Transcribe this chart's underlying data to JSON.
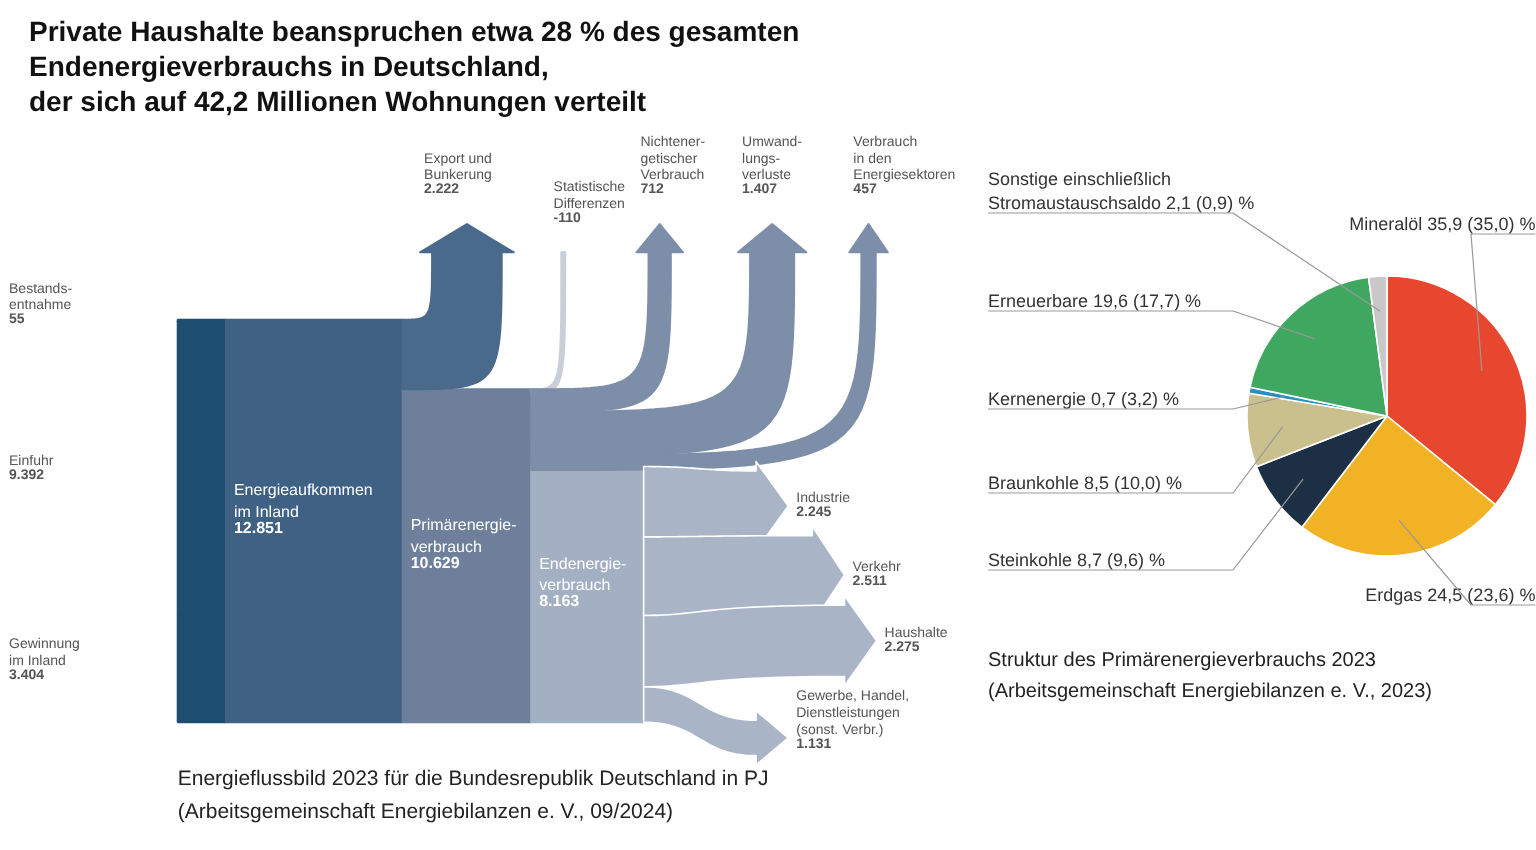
{
  "chart_data": [
    {
      "type": "other",
      "title": "Private Haushalte beanspruchen etwa 28 % des gesamten\nEndenergieverbrauchs in Deutschland,\nder sich auf 42,2 Millionen Wohnungen verteilt",
      "categories": [
        "Bestands-\nentnahme",
        "Einfuhr",
        "Gewinnung\nim Inland",
        "Energieaufkommen\nim Inland",
        "Export und\nBunkerung",
        "Primärenergie-\nverbrauch",
        "Statistische\nDifferenzen",
        "Nichtener-\ngetischer\nVerbrauch",
        "Umwand-\nlungs-\nverluste",
        "Verbrauch\nin den\nEnergiesektoren",
        "Endenergie-\nverbrauch",
        "Industrie",
        "Verkehr",
        "Haushalte",
        "Gewerbe, Handel,\nDienstleistungen\n(sonst. Verbr.)"
      ],
      "values": [
        55,
        9392,
        3404,
        12851,
        2222,
        10629,
        -110,
        712,
        1407,
        457,
        8163,
        2245,
        2511,
        2275,
        1131
      ],
      "value_labels": [
        "55",
        "9.392",
        "3.404",
        "12.851",
        "2.222",
        "10.629",
        "-110",
        "712",
        "1.407",
        "457",
        "8.163",
        "2.245",
        "2.511",
        "2.275",
        "1.131"
      ],
      "colors": [
        "#1d4e72",
        "#1d4e72",
        "#1d4e72",
        "#3f6184",
        "#4a6a8c",
        "#6d7f9a",
        "#c9ced8",
        "#7d8ea8",
        "#7d8ea8",
        "#7d8ea8",
        "#a3b0c3",
        "#a9b5c6",
        "#a9b5c6",
        "#a9b5c6",
        "#a9b5c6"
      ],
      "annotations": [
        "Energieflussbild 2023 für die Bundesrepublik Deutschland in PJ",
        "(Arbeitsgemeinschaft Energiebilanzen e. V., 09/2024)"
      ]
    },
    {
      "type": "pie",
      "categories": [
        "Mineralöl",
        "Erdgas",
        "Steinkohle",
        "Braunkohle",
        "Kernenergie",
        "Erneuerbare",
        "Sonstige einschließlich\nStromaustauschsaldo"
      ],
      "values": [
        35.9,
        24.5,
        8.7,
        8.5,
        0.7,
        19.6,
        2.1
      ],
      "value_labels": [
        "35,9 (35,0) %",
        "24,5 (23,6) %",
        "8,7 (9,6) %",
        "8,5 (10,0) %",
        "0,7 (3,2) %",
        "19,6 (17,7) %",
        "2,1 (0,9) %"
      ],
      "colors": [
        "#e8472f",
        "#f2b225",
        "#1d2f45",
        "#c9c08e",
        "#2a8fc0",
        "#3fa760",
        "#c8c8c8"
      ],
      "annotations": [
        "Struktur des Primärenergieverbrauchs 2023",
        "(Arbeitsgemeinschaft Energiebilanzen e. V., 2023)"
      ]
    }
  ]
}
